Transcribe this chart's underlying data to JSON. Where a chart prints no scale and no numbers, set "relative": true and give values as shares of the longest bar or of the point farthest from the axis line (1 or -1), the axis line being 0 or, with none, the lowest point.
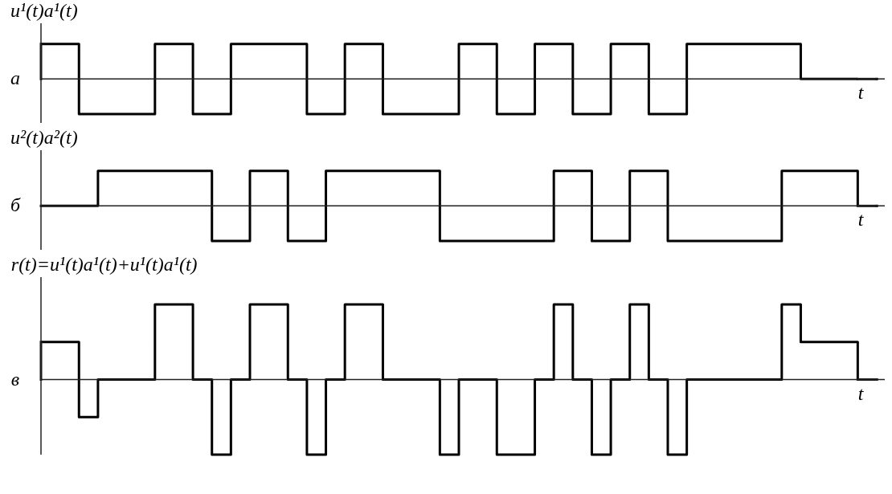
{
  "chart_data": [
    {
      "type": "step",
      "relative": true,
      "title": "u¹(t)a¹(t)",
      "ylabel": "а",
      "xlabel": "t",
      "color": "#000000",
      "categories": [
        null,
        null,
        null,
        null,
        null,
        null,
        null,
        null,
        null,
        null,
        null,
        null,
        null,
        null,
        null,
        null,
        null,
        null,
        null,
        null,
        null,
        null,
        null,
        null,
        null,
        null,
        null,
        null,
        null,
        null,
        null,
        null,
        null,
        null,
        null,
        null,
        null,
        null,
        null,
        null,
        null,
        null,
        null,
        null
      ],
      "values": [
        1,
        1,
        -1,
        -1,
        -1,
        -1,
        1,
        1,
        -1,
        -1,
        1,
        1,
        1,
        1,
        -1,
        -1,
        1,
        1,
        -1,
        -1,
        -1,
        -1,
        1,
        1,
        -1,
        -1,
        1,
        1,
        -1,
        -1,
        1,
        1,
        -1,
        -1,
        1,
        1,
        1,
        1,
        1,
        1,
        0,
        0,
        0,
        0
      ]
    },
    {
      "type": "step",
      "relative": true,
      "title": "u²(t)a²(t)",
      "ylabel": "б",
      "xlabel": "t",
      "color": "#000000",
      "categories": [
        null,
        null,
        null,
        null,
        null,
        null,
        null,
        null,
        null,
        null,
        null,
        null,
        null,
        null,
        null,
        null,
        null,
        null,
        null,
        null,
        null,
        null,
        null,
        null,
        null,
        null,
        null,
        null,
        null,
        null,
        null,
        null,
        null,
        null,
        null,
        null,
        null,
        null,
        null,
        null,
        null,
        null,
        null,
        null
      ],
      "values": [
        0,
        0,
        0,
        1,
        1,
        1,
        1,
        1,
        1,
        -1,
        -1,
        1,
        1,
        -1,
        -1,
        1,
        1,
        1,
        1,
        1,
        1,
        -1,
        -1,
        -1,
        -1,
        -1,
        -1,
        1,
        1,
        -1,
        -1,
        1,
        1,
        -1,
        -1,
        -1,
        -1,
        -1,
        -1,
        1,
        1,
        1,
        1,
        0
      ]
    },
    {
      "type": "step",
      "relative": true,
      "title": "r(t)=u¹(t)a¹(t)+u¹(t)a¹(t)",
      "ylabel": "в",
      "xlabel": "t",
      "color": "#000000",
      "categories": [
        null,
        null,
        null,
        null,
        null,
        null,
        null,
        null,
        null,
        null,
        null,
        null,
        null,
        null,
        null,
        null,
        null,
        null,
        null,
        null,
        null,
        null,
        null,
        null,
        null,
        null,
        null,
        null,
        null,
        null,
        null,
        null,
        null,
        null,
        null,
        null,
        null,
        null,
        null,
        null,
        null,
        null,
        null,
        null
      ],
      "values": [
        0.5,
        0.5,
        -0.5,
        0,
        0,
        0,
        1,
        1,
        0,
        -1,
        0,
        1,
        1,
        0,
        -1,
        0,
        1,
        1,
        0,
        0,
        0,
        -1,
        0,
        0,
        -1,
        -1,
        0,
        1,
        0,
        -1,
        0,
        1,
        0,
        -1,
        0,
        0,
        0,
        0,
        0,
        1,
        0.5,
        0.5,
        0.5,
        0
      ]
    }
  ]
}
